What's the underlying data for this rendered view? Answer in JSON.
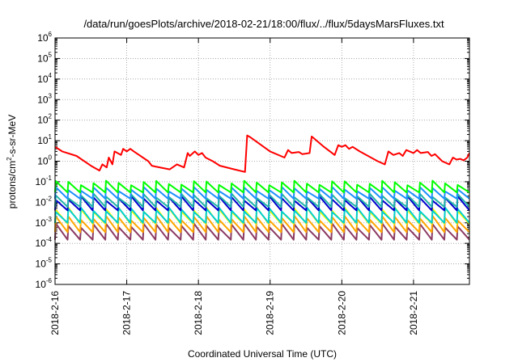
{
  "chart_data": {
    "type": "line",
    "title": "/data/run/goesPlots/archive/2018-02-21/18:00/flux/../flux/5daysMarsFluxes.txt",
    "xlabel": "Coordinated Universal Time (UTC)",
    "ylabel_parts": [
      "protons/cm",
      "2",
      "-s-sr-MeV"
    ],
    "x_range_days": [
      0,
      5.78
    ],
    "x_tick_labels": [
      "2018-2-16",
      "2018-2-17",
      "2018-2-18",
      "2018-2-19",
      "2018-2-20",
      "2018-2-21"
    ],
    "y_scale": "log",
    "ylim_exp": [
      -6,
      6
    ],
    "y_tick_exponents": [
      -6,
      -5,
      -4,
      -3,
      -2,
      -1,
      0,
      1,
      2,
      3,
      4,
      5,
      6
    ],
    "grid": true,
    "series": [
      {
        "color": "#ff0000",
        "x": [
          0,
          0.1,
          0.3,
          0.5,
          0.62,
          0.66,
          0.72,
          0.75,
          0.8,
          0.83,
          0.92,
          0.95,
          1.0,
          1.05,
          1.1,
          1.3,
          1.35,
          1.4,
          1.6,
          1.7,
          1.8,
          1.85,
          1.88,
          1.95,
          2.0,
          2.05,
          2.1,
          2.2,
          2.3,
          2.5,
          2.65,
          2.68,
          2.72,
          3.0,
          3.2,
          3.25,
          3.3,
          3.4,
          3.45,
          3.55,
          3.58,
          3.65,
          3.75,
          3.9,
          3.95,
          4.0,
          4.05,
          4.1,
          4.15,
          4.25,
          4.5,
          4.6,
          4.65,
          4.72,
          4.8,
          4.85,
          4.9,
          5.0,
          5.05,
          5.1,
          5.2,
          5.25,
          5.3,
          5.4,
          5.5,
          5.55,
          5.6,
          5.65,
          5.7,
          5.75,
          5.78
        ],
        "y": [
          5,
          3,
          1.8,
          0.6,
          0.35,
          0.7,
          0.5,
          1.5,
          0.7,
          3.0,
          2.0,
          4.0,
          3.0,
          4.0,
          3.0,
          1.0,
          0.6,
          0.55,
          0.4,
          0.7,
          0.5,
          2.5,
          1.8,
          3.0,
          2.0,
          2.5,
          1.5,
          1.0,
          0.6,
          0.4,
          0.3,
          18,
          15,
          3.0,
          1.5,
          3.5,
          2.5,
          2.8,
          2.2,
          2.5,
          16,
          10,
          5.0,
          2.0,
          6.0,
          5.0,
          6.0,
          4.0,
          5.0,
          3.0,
          1.0,
          0.7,
          3.0,
          2.0,
          2.5,
          1.8,
          3.5,
          2.5,
          3.5,
          2.5,
          2.8,
          1.8,
          2.2,
          1.0,
          0.7,
          1.5,
          1.2,
          1.3,
          1.1,
          1.5,
          2.5
        ]
      },
      {
        "color": "#00ff00",
        "base": 0.03,
        "ratio": 3.0,
        "teeth": 33
      },
      {
        "color": "#1e90ff",
        "base": 0.015,
        "ratio": 3.0,
        "teeth": 33
      },
      {
        "color": "#20b2aa",
        "base": 0.006,
        "ratio": 3.5,
        "teeth": 33
      },
      {
        "color": "#0000cd",
        "base": 0.004,
        "ratio": 4.0,
        "teeth": 33
      },
      {
        "color": "#00ced1",
        "base": 0.001,
        "ratio": 4.5,
        "teeth": 33
      },
      {
        "color": "#ffff00",
        "base": 0.0009,
        "ratio": 5.0,
        "teeth": 33
      },
      {
        "color": "#ffa500",
        "base": 0.00035,
        "ratio": 5.0,
        "teeth": 33
      },
      {
        "color": "#8b3a62",
        "base": 0.00015,
        "ratio": 5.0,
        "teeth": 33
      }
    ]
  }
}
